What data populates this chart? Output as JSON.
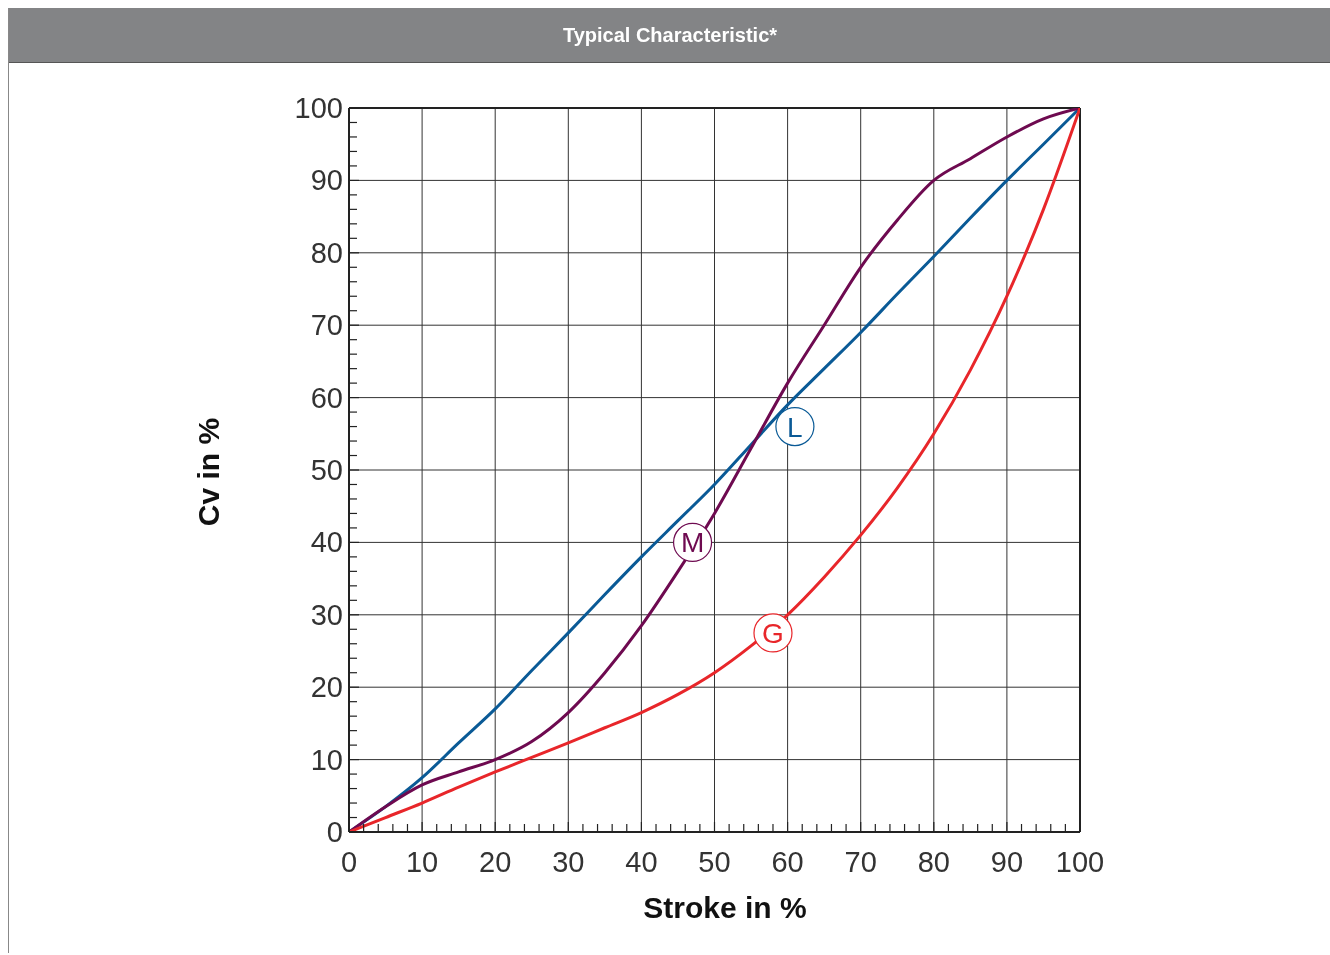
{
  "chart_data": {
    "type": "line",
    "title": "Typical Characteristic*",
    "xlabel": "Stroke in %",
    "ylabel": "Cv in %",
    "x": [
      0,
      5,
      10,
      15,
      20,
      25,
      30,
      35,
      40,
      45,
      50,
      55,
      60,
      65,
      70,
      75,
      80,
      85,
      90,
      95,
      100
    ],
    "series": [
      {
        "color": "#0a5a96",
        "values": [
          0,
          3.5,
          7.5,
          12.3,
          17,
          22.3,
          27.5,
          32.8,
          38,
          43,
          48,
          53.5,
          59,
          64,
          69,
          74.3,
          79.5,
          84.8,
          90,
          95,
          100
        ]
      },
      {
        "color": "#6e0a50",
        "values": [
          0,
          3.5,
          6.5,
          8.3,
          10,
          12.5,
          16.5,
          22,
          28.5,
          36,
          44,
          53,
          62,
          70,
          78,
          84.5,
          90,
          93,
          96,
          98.5,
          100
        ]
      },
      {
        "color": "#e8262a",
        "values": [
          0,
          2,
          4,
          6.2,
          8.3,
          10.3,
          12.3,
          14.4,
          16.5,
          19,
          22,
          25.7,
          30,
          35.2,
          41,
          47.5,
          55,
          63.8,
          74,
          86,
          100
        ]
      }
    ],
    "annotations": [
      {
        "text": "L",
        "x": 61,
        "y": 56
      },
      {
        "text": "M",
        "x": 47,
        "y": 40
      },
      {
        "text": "G",
        "x": 58,
        "y": 27.5
      }
    ],
    "xlim": [
      0,
      100
    ],
    "ylim": [
      0,
      100
    ],
    "xticks": [
      0,
      {
        "value": 2,
        "label": null
      },
      {
        "value": 4,
        "label": null
      },
      {
        "value": 6,
        "label": null
      },
      {
        "value": 8,
        "label": null
      },
      10,
      {
        "value": 12,
        "label": null
      },
      {
        "value": 14,
        "label": null
      },
      {
        "value": 16,
        "label": null
      },
      {
        "value": 18,
        "label": null
      },
      20,
      {
        "value": 22,
        "label": null
      },
      {
        "value": 24,
        "label": null
      },
      {
        "value": 26,
        "label": null
      },
      {
        "value": 28,
        "label": null
      },
      30,
      {
        "value": 32,
        "label": null
      },
      {
        "value": 34,
        "label": null
      },
      {
        "value": 36,
        "label": null
      },
      {
        "value": 38,
        "label": null
      },
      40,
      {
        "value": 42,
        "label": null
      },
      {
        "value": 44,
        "label": null
      },
      {
        "value": 46,
        "label": null
      },
      {
        "value": 48,
        "label": null
      },
      50,
      {
        "value": 52,
        "label": null
      },
      {
        "value": 54,
        "label": null
      },
      {
        "value": 56,
        "label": null
      },
      {
        "value": 58,
        "label": null
      },
      60,
      {
        "value": 62,
        "label": null
      },
      {
        "value": 64,
        "label": null
      },
      {
        "value": 66,
        "label": null
      },
      {
        "value": 68,
        "label": null
      },
      70,
      {
        "value": 72,
        "label": null
      },
      {
        "value": 74,
        "label": null
      },
      {
        "value": 76,
        "label": null
      },
      {
        "value": 78,
        "label": null
      },
      80,
      {
        "value": 82,
        "label": null
      },
      {
        "value": 84,
        "label": null
      },
      {
        "value": 86,
        "label": null
      },
      {
        "value": 88,
        "label": null
      },
      90,
      {
        "value": 92,
        "label": null
      },
      {
        "value": 94,
        "label": null
      },
      {
        "value": 96,
        "label": null
      },
      {
        "value": 98,
        "label": null
      },
      100
    ],
    "yticks": [
      0,
      {
        "value": 2,
        "label": null
      },
      {
        "value": 4,
        "label": null
      },
      {
        "value": 6,
        "label": null
      },
      {
        "value": 8,
        "label": null
      },
      10,
      {
        "value": 12,
        "label": null
      },
      {
        "value": 14,
        "label": null
      },
      {
        "value": 16,
        "label": null
      },
      {
        "value": 18,
        "label": null
      },
      20,
      {
        "value": 22,
        "label": null
      },
      {
        "value": 24,
        "label": null
      },
      {
        "value": 26,
        "label": null
      },
      {
        "value": 28,
        "label": null
      },
      30,
      {
        "value": 32,
        "label": null
      },
      {
        "value": 34,
        "label": null
      },
      {
        "value": 36,
        "label": null
      },
      {
        "value": 38,
        "label": null
      },
      40,
      {
        "value": 42,
        "label": null
      },
      {
        "value": 44,
        "label": null
      },
      {
        "value": 46,
        "label": null
      },
      {
        "value": 48,
        "label": null
      },
      50,
      {
        "value": 52,
        "label": null
      },
      {
        "value": 54,
        "label": null
      },
      {
        "value": 56,
        "label": null
      },
      {
        "value": 58,
        "label": null
      },
      60,
      {
        "value": 62,
        "label": null
      },
      {
        "value": 64,
        "label": null
      },
      {
        "value": 66,
        "label": null
      },
      {
        "value": 68,
        "label": null
      },
      70,
      {
        "value": 72,
        "label": null
      },
      {
        "value": 74,
        "label": null
      },
      {
        "value": 76,
        "label": null
      },
      {
        "value": 78,
        "label": null
      },
      80,
      {
        "value": 82,
        "label": null
      },
      {
        "value": 84,
        "label": null
      },
      {
        "value": 86,
        "label": null
      },
      {
        "value": 88,
        "label": null
      },
      90,
      {
        "value": 92,
        "label": null
      },
      {
        "value": 94,
        "label": null
      },
      {
        "value": 96,
        "label": null
      },
      {
        "value": 98,
        "label": null
      },
      100
    ],
    "grid": true,
    "marker": "none",
    "line_style": "solid"
  }
}
